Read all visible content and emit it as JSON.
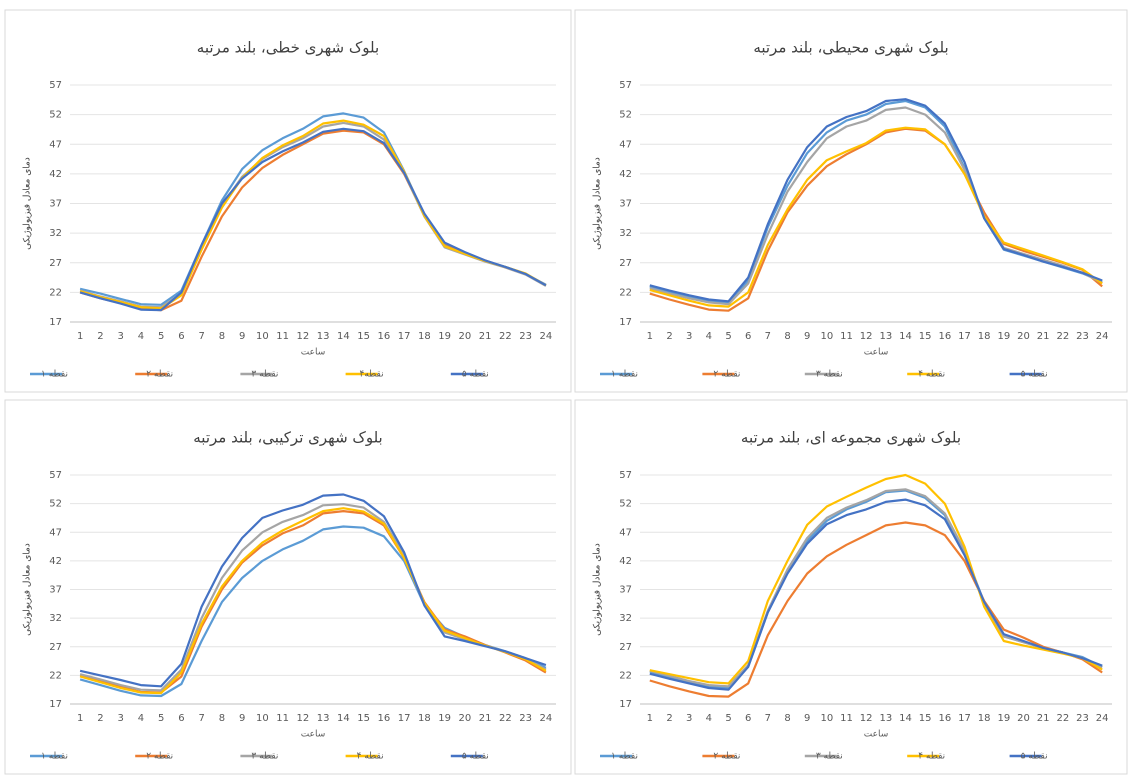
{
  "chart_data": [
    {
      "type": "line",
      "title": "بلوک شهری خطی، بلند مرتبه",
      "ylabel": "دمای معادل فیزیولوژیکی",
      "xlabel": "ساعت",
      "categories": [
        1,
        2,
        3,
        4,
        5,
        6,
        7,
        8,
        9,
        10,
        11,
        12,
        13,
        14,
        15,
        16,
        17,
        18,
        19,
        20,
        21,
        22,
        23,
        24
      ],
      "ylim": [
        17,
        57
      ],
      "yticks": [
        17,
        22,
        27,
        32,
        37,
        42,
        47,
        52,
        57
      ],
      "grid": true,
      "legend": "bottom",
      "series": [
        {
          "name": "نقطه ۱",
          "color": "#5b9bd5",
          "values": [
            22.6,
            21.8,
            20.9,
            20,
            19.9,
            22.3,
            30,
            37.5,
            42.8,
            46,
            48,
            49.6,
            51.7,
            52.2,
            51.5,
            49,
            42.5,
            35,
            30,
            28.6,
            27.3,
            26.3,
            25.1,
            23.3
          ]
        },
        {
          "name": "نقطه ۲",
          "color": "#ed7d31",
          "values": [
            22,
            21,
            20.2,
            19.2,
            19,
            20.6,
            28,
            34.8,
            39.7,
            43,
            45.2,
            47,
            48.8,
            49.3,
            49,
            47,
            42,
            35,
            30.3,
            28.6,
            27.4,
            26.2,
            25.1,
            23.2
          ]
        },
        {
          "name": "نقطه ۳",
          "color": "#a5a5a5",
          "values": [
            22.3,
            21.3,
            20.5,
            19.6,
            19.5,
            21.8,
            29.5,
            36.6,
            41.5,
            44.5,
            46.5,
            48,
            50,
            50.6,
            50,
            47.8,
            42.2,
            34.8,
            29.6,
            28.4,
            27.2,
            26.2,
            25,
            23.1
          ]
        },
        {
          "name": "نقطه۴",
          "color": "#ffc000",
          "values": [
            22.2,
            21.2,
            20.4,
            19.5,
            19.3,
            21.5,
            29.2,
            36.3,
            41.3,
            44.7,
            46.8,
            48.4,
            50.5,
            51,
            50.3,
            48.4,
            42.4,
            34.9,
            29.8,
            28.5,
            27.3,
            26.3,
            25.2,
            23.2
          ]
        },
        {
          "name": "نقطه ۵",
          "color": "#4472c4",
          "values": [
            22,
            21,
            20.1,
            19.1,
            19,
            22,
            30,
            37,
            41.2,
            44,
            45.8,
            47.3,
            49.1,
            49.6,
            49.2,
            47.2,
            42.2,
            35.3,
            30.4,
            28.8,
            27.4,
            26.3,
            25.1,
            23.2
          ]
        }
      ]
    },
    {
      "type": "line",
      "title": "بلوک شهری محیطی، بلند مرتبه",
      "ylabel": "دمای معادل فیزیولوژیکی",
      "xlabel": "ساعت",
      "categories": [
        1,
        2,
        3,
        4,
        5,
        6,
        7,
        8,
        9,
        10,
        11,
        12,
        13,
        14,
        15,
        16,
        17,
        18,
        19,
        20,
        21,
        22,
        23,
        24
      ],
      "ylim": [
        17,
        57
      ],
      "yticks": [
        17,
        22,
        27,
        32,
        37,
        42,
        47,
        52,
        57
      ],
      "grid": true,
      "legend": "bottom",
      "series": [
        {
          "name": "نقطه ۱",
          "color": "#5b9bd5",
          "values": [
            23,
            22.1,
            21.3,
            20.6,
            20.2,
            24,
            33,
            40,
            45.5,
            49,
            51,
            52,
            53.8,
            54.3,
            53.2,
            50,
            43,
            34.5,
            29.2,
            28.2,
            27.2,
            26.2,
            25.2,
            23.8
          ]
        },
        {
          "name": "نقطه ۲",
          "color": "#ed7d31",
          "values": [
            21.8,
            20.8,
            19.9,
            19.1,
            18.9,
            21,
            29,
            35.5,
            40,
            43.3,
            45.3,
            47,
            49,
            49.6,
            49.3,
            47,
            42,
            35.5,
            30.2,
            29,
            28,
            27,
            25.8,
            23
          ]
        },
        {
          "name": "نقطه ۳",
          "color": "#a5a5a5",
          "values": [
            22.7,
            21.8,
            21,
            20.3,
            20,
            23.5,
            31.8,
            39,
            44,
            48,
            50,
            51,
            52.8,
            53.2,
            52,
            49,
            42.7,
            34.8,
            29.5,
            28.5,
            27.5,
            26.5,
            25.3,
            23.6
          ]
        },
        {
          "name": "نقطه ۴",
          "color": "#ffc000",
          "values": [
            22.4,
            21.5,
            20.6,
            19.8,
            19.6,
            22,
            30,
            36,
            41,
            44.3,
            45.8,
            47.2,
            49.3,
            49.8,
            49.5,
            47,
            42,
            34.8,
            30.4,
            29.3,
            28.2,
            27.1,
            25.9,
            23.5
          ]
        },
        {
          "name": "نقطه ۵",
          "color": "#4472c4",
          "values": [
            23.2,
            22.3,
            21.5,
            20.8,
            20.5,
            24.5,
            33.5,
            41,
            46.5,
            50,
            51.6,
            52.6,
            54.3,
            54.6,
            53.5,
            50.5,
            44,
            34.5,
            29.3,
            28.3,
            27.2,
            26.3,
            25.3,
            24
          ]
        }
      ]
    },
    {
      "type": "line",
      "title": "بلوک شهری ترکیبی، بلند مرتبه",
      "ylabel": "دمای معادل فیزیولوژیکی",
      "xlabel": "ساعت",
      "categories": [
        1,
        2,
        3,
        4,
        5,
        6,
        7,
        8,
        9,
        10,
        11,
        12,
        13,
        14,
        15,
        16,
        17,
        18,
        19,
        20,
        21,
        22,
        23,
        24
      ],
      "ylim": [
        17,
        57
      ],
      "yticks": [
        17,
        22,
        27,
        32,
        37,
        42,
        47,
        52,
        57
      ],
      "grid": true,
      "legend": "bottom",
      "series": [
        {
          "name": "نقطه ۱",
          "color": "#5b9bd5",
          "values": [
            21.3,
            20.3,
            19.3,
            18.5,
            18.4,
            20.5,
            28,
            34.8,
            39,
            42,
            44,
            45.5,
            47.5,
            48,
            47.8,
            46.3,
            42,
            34.3,
            30.3,
            28.7,
            27.3,
            26.2,
            25,
            23.3
          ]
        },
        {
          "name": "نقطه ۲",
          "color": "#ed7d31",
          "values": [
            22,
            21,
            20,
            19.1,
            19,
            21.8,
            30.5,
            37,
            41.7,
            44.7,
            46.8,
            48.2,
            50.3,
            50.7,
            50.3,
            48.2,
            42.5,
            34.8,
            30,
            28.8,
            27.3,
            26,
            24.6,
            22.5
          ]
        },
        {
          "name": "نقطه ۳",
          "color": "#a5a5a5",
          "values": [
            22.2,
            21.3,
            20.3,
            19.5,
            19.4,
            23,
            32,
            39,
            43.8,
            47,
            48.8,
            50,
            51.7,
            51.9,
            51.3,
            48.8,
            43,
            34.5,
            29.5,
            28.3,
            27.2,
            26.1,
            25,
            23
          ]
        },
        {
          "name": "نقطه ۴",
          "color": "#ffc000",
          "values": [
            21.8,
            20.8,
            19.8,
            19,
            18.9,
            22.5,
            31,
            37.5,
            42,
            45.2,
            47.3,
            49,
            50.7,
            51.2,
            50.6,
            48.5,
            42.5,
            34.6,
            29.8,
            28.5,
            27.2,
            26.1,
            24.8,
            22.8
          ]
        },
        {
          "name": "نقطه ۵",
          "color": "#4472c4",
          "values": [
            22.8,
            22,
            21.2,
            20.3,
            20.1,
            24,
            34,
            41,
            46,
            49.5,
            50.8,
            51.8,
            53.4,
            53.6,
            52.5,
            49.8,
            43.5,
            34.2,
            28.8,
            28,
            27.1,
            26.2,
            25,
            23.8
          ]
        }
      ]
    },
    {
      "type": "line",
      "title": "بلوک شهری مجموعه ای، بلند مرتبه",
      "ylabel": "دمای معادل فیزیولوژیکی",
      "xlabel": "ساعت",
      "categories": [
        1,
        2,
        3,
        4,
        5,
        6,
        7,
        8,
        9,
        10,
        11,
        12,
        13,
        14,
        15,
        16,
        17,
        18,
        19,
        20,
        21,
        22,
        23,
        24
      ],
      "ylim": [
        17,
        57
      ],
      "yticks": [
        17,
        22,
        27,
        32,
        37,
        42,
        47,
        52,
        57
      ],
      "grid": true,
      "legend": "bottom",
      "series": [
        {
          "name": "نقطه ۱",
          "color": "#5b9bd5",
          "values": [
            22.7,
            21.7,
            20.8,
            20,
            19.8,
            23.5,
            33,
            40,
            45.5,
            49,
            51,
            52.3,
            54,
            54.3,
            53,
            50,
            43.5,
            34.8,
            28.8,
            27.8,
            26.8,
            26,
            25.2,
            23.5
          ]
        },
        {
          "name": "نقطه ۲",
          "color": "#ed7d31",
          "values": [
            21.1,
            20.1,
            19.2,
            18.4,
            18.3,
            20.6,
            29,
            35,
            39.8,
            42.8,
            44.8,
            46.5,
            48.2,
            48.7,
            48.2,
            46.5,
            42,
            35,
            30,
            28.6,
            27,
            26,
            24.8,
            22.5
          ]
        },
        {
          "name": "نقطه ۳",
          "color": "#a5a5a5",
          "values": [
            22.8,
            21.9,
            21,
            20.3,
            20.1,
            23.8,
            33.3,
            40.5,
            46,
            49.5,
            51.3,
            52.6,
            54.2,
            54.5,
            53.3,
            50.3,
            43.8,
            34.5,
            28.8,
            27.8,
            26.8,
            26,
            25,
            23.4
          ]
        },
        {
          "name": "نقطه ۴",
          "color": "#ffc000",
          "values": [
            22.9,
            22.2,
            21.5,
            20.8,
            20.6,
            24.5,
            35,
            42,
            48.3,
            51.5,
            53.2,
            54.8,
            56.3,
            57,
            55.5,
            52,
            44.5,
            34,
            28,
            27.2,
            26.5,
            25.8,
            25,
            23
          ]
        },
        {
          "name": "نقطه ۵",
          "color": "#4472c4",
          "values": [
            22.3,
            21.4,
            20.6,
            19.8,
            19.5,
            23.5,
            33,
            39.8,
            45,
            48.4,
            50,
            51,
            52.3,
            52.7,
            51.7,
            49.3,
            43,
            34.8,
            29.2,
            28,
            26.8,
            26,
            25,
            23.7
          ]
        }
      ]
    }
  ]
}
